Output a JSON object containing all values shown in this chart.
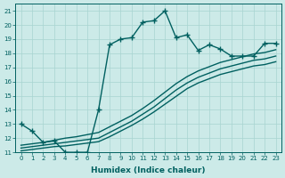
{
  "xlabel": "Humidex (Indice chaleur)",
  "xlim": [
    -0.5,
    23.5
  ],
  "ylim": [
    11,
    21.5
  ],
  "yticks": [
    11,
    12,
    13,
    14,
    15,
    16,
    17,
    18,
    19,
    20,
    21
  ],
  "xticks": [
    0,
    1,
    2,
    3,
    4,
    5,
    6,
    7,
    8,
    9,
    10,
    11,
    12,
    13,
    14,
    15,
    16,
    17,
    18,
    19,
    20,
    21,
    22,
    23
  ],
  "xtick_labels": [
    "0",
    "1",
    "2",
    "3",
    "4",
    "5",
    "6",
    "7",
    "8",
    "9",
    "10",
    "11",
    "12",
    "13",
    "14",
    "15",
    "16",
    "17",
    "18",
    "19",
    "20",
    "21",
    "22",
    "23"
  ],
  "bg_color": "#cceae8",
  "line_color": "#006060",
  "line_width": 1.0,
  "marker": "+",
  "marker_size": 4,
  "series": [
    {
      "x": [
        0,
        1,
        2,
        3,
        4,
        5,
        6,
        7,
        8,
        9,
        10,
        11,
        12,
        13,
        14,
        15,
        16,
        17,
        18,
        19,
        20,
        21,
        22,
        23
      ],
      "y": [
        13.0,
        12.5,
        11.7,
        11.8,
        11.0,
        11.0,
        11.0,
        14.0,
        18.6,
        19.0,
        19.1,
        20.2,
        20.3,
        21.0,
        19.1,
        19.3,
        18.2,
        18.6,
        18.3,
        17.8,
        17.8,
        17.8,
        18.7,
        18.7
      ],
      "with_markers": true
    },
    {
      "x": [
        0,
        1,
        2,
        3,
        4,
        5,
        6,
        7,
        8,
        9,
        10,
        11,
        12,
        13,
        14,
        15,
        16,
        17,
        18,
        19,
        20,
        21,
        22,
        23
      ],
      "y": [
        11.3,
        11.4,
        11.5,
        11.6,
        11.7,
        11.8,
        11.9,
        12.0,
        12.4,
        12.8,
        13.2,
        13.7,
        14.2,
        14.8,
        15.4,
        15.9,
        16.3,
        16.6,
        16.9,
        17.1,
        17.3,
        17.5,
        17.6,
        17.8
      ],
      "with_markers": false
    },
    {
      "x": [
        0,
        1,
        2,
        3,
        4,
        5,
        6,
        7,
        8,
        9,
        10,
        11,
        12,
        13,
        14,
        15,
        16,
        17,
        18,
        19,
        20,
        21,
        22,
        23
      ],
      "y": [
        11.5,
        11.6,
        11.7,
        11.85,
        12.0,
        12.1,
        12.25,
        12.4,
        12.8,
        13.2,
        13.6,
        14.1,
        14.65,
        15.25,
        15.85,
        16.35,
        16.75,
        17.05,
        17.35,
        17.55,
        17.75,
        17.95,
        18.05,
        18.25
      ],
      "with_markers": false
    },
    {
      "x": [
        0,
        1,
        2,
        3,
        4,
        5,
        6,
        7,
        8,
        9,
        10,
        11,
        12,
        13,
        14,
        15,
        16,
        17,
        18,
        19,
        20,
        21,
        22,
        23
      ],
      "y": [
        11.1,
        11.2,
        11.3,
        11.4,
        11.45,
        11.55,
        11.65,
        11.75,
        12.1,
        12.5,
        12.9,
        13.35,
        13.85,
        14.4,
        14.95,
        15.5,
        15.9,
        16.2,
        16.5,
        16.7,
        16.9,
        17.1,
        17.2,
        17.4
      ],
      "with_markers": false
    }
  ]
}
